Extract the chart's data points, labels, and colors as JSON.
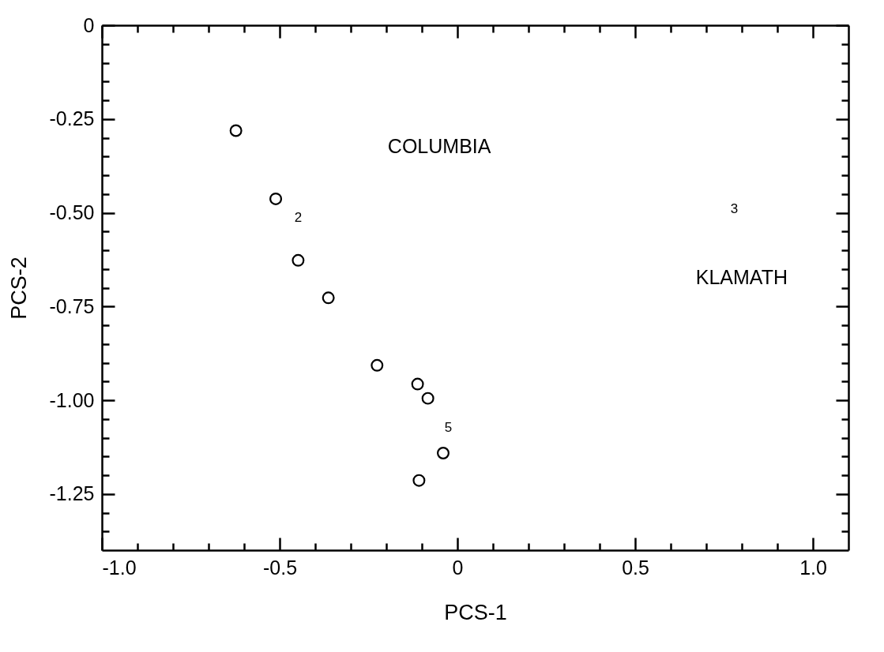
{
  "chart_data": {
    "type": "scatter",
    "xlabel": "PCS-1",
    "ylabel": "PCS-2",
    "x": [
      -0.623,
      -0.511,
      -0.448,
      -0.363,
      -0.226,
      -0.112,
      -0.083,
      -0.04,
      -0.108
    ],
    "series": [
      {
        "color": "#000000",
        "values": [
          -0.281,
          -0.463,
          -0.627,
          -0.727,
          -0.907,
          -0.957,
          -0.995,
          -1.141,
          -1.214
        ]
      }
    ],
    "marker": "circle",
    "xlim": [
      -1.0,
      1.1
    ],
    "xticks": [
      {
        "value": -1.0,
        "label": "-1.0"
      },
      {
        "value": -0.9,
        "label": null
      },
      {
        "value": -0.8,
        "label": null
      },
      {
        "value": -0.7,
        "label": null
      },
      {
        "value": -0.6,
        "label": null
      },
      {
        "value": -0.5,
        "label": "-0.5"
      },
      {
        "value": -0.4,
        "label": null
      },
      {
        "value": -0.3,
        "label": null
      },
      {
        "value": -0.2,
        "label": null
      },
      {
        "value": -0.1,
        "label": null
      },
      0,
      {
        "value": 0.1,
        "label": null
      },
      {
        "value": 0.2,
        "label": null
      },
      {
        "value": 0.3,
        "label": null
      },
      {
        "value": 0.4,
        "label": null
      },
      0.5,
      {
        "value": 0.6,
        "label": null
      },
      {
        "value": 0.7,
        "label": null
      },
      {
        "value": 0.8,
        "label": null
      },
      {
        "value": 0.9,
        "label": null
      },
      {
        "value": 1.0,
        "label": "1.0"
      }
    ],
    "ylim": [
      -1.4,
      0
    ],
    "yticks": [
      0,
      {
        "value": -0.05,
        "label": null
      },
      {
        "value": -0.1,
        "label": null
      },
      {
        "value": -0.15,
        "label": null
      },
      {
        "value": -0.2,
        "label": null
      },
      -0.25,
      {
        "value": -0.3,
        "label": null
      },
      {
        "value": -0.35,
        "label": null
      },
      {
        "value": -0.4,
        "label": null
      },
      {
        "value": -0.45,
        "label": null
      },
      {
        "value": -0.5,
        "label": "-0.50"
      },
      {
        "value": -0.55,
        "label": null
      },
      {
        "value": -0.6,
        "label": null
      },
      {
        "value": -0.65,
        "label": null
      },
      {
        "value": -0.7,
        "label": null
      },
      -0.75,
      {
        "value": -0.8,
        "label": null
      },
      {
        "value": -0.85,
        "label": null
      },
      {
        "value": -0.9,
        "label": null
      },
      {
        "value": -0.95,
        "label": null
      },
      {
        "value": -1.0,
        "label": "-1.00"
      },
      {
        "value": -1.05,
        "label": null
      },
      {
        "value": -1.1,
        "label": null
      },
      {
        "value": -1.15,
        "label": null
      },
      {
        "value": -1.2,
        "label": null
      },
      -1.25,
      {
        "value": -1.3,
        "label": null
      },
      {
        "value": -1.35,
        "label": null
      }
    ],
    "annotations": [
      "COLUMBIA",
      "KLAMATH",
      "2",
      "5",
      "3"
    ],
    "grid": false
  }
}
